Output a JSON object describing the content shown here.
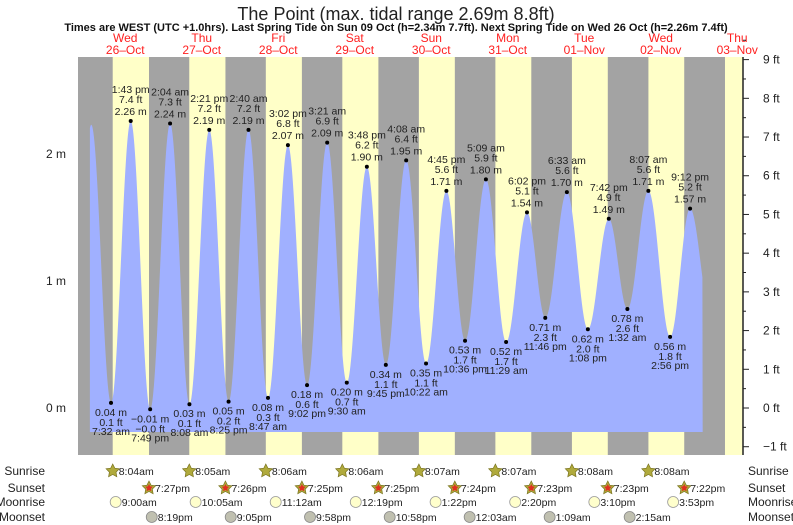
{
  "title": "The Point (max. tidal range 2.69m 8.8ft)",
  "subtitle": "Times are WEST (UTC +1.0hrs). Last Spring Tide on Sun 09 Oct (h=2.34m 7.7ft). Next Spring Tide on Wed 26 Oct (h=2.26m 7.4ft)",
  "colors": {
    "night": "#a3a3a3",
    "day": "#ffffc8",
    "tide": "#a0b0ff",
    "day_label": "#ff2020",
    "sunrise_star": "#b0aa3c",
    "sunset_star": "#e03020",
    "moonrise": "#ffffcc",
    "moonset": "#c0c0b0"
  },
  "chart_data": {
    "type": "area",
    "title": "The Point (max. tidal range 2.69m 8.8ft)",
    "left_axis": {
      "unit": "m",
      "ticks": [
        "2 m",
        "1 m",
        "0 m"
      ],
      "values": [
        2,
        1,
        0
      ]
    },
    "right_axis": {
      "unit": "ft",
      "ticks": [
        "9 ft",
        "8 ft",
        "7 ft",
        "6 ft",
        "5 ft",
        "4 ft",
        "3 ft",
        "2 ft",
        "1 ft",
        "0 ft",
        "−1 ft"
      ],
      "values": [
        9,
        8,
        7,
        6,
        5,
        4,
        3,
        2,
        1,
        0,
        -1
      ]
    },
    "days": [
      {
        "dow": "Wed",
        "date": "26-Oct"
      },
      {
        "dow": "Thu",
        "date": "27-Oct"
      },
      {
        "dow": "Fri",
        "date": "28-Oct"
      },
      {
        "dow": "Sat",
        "date": "29-Oct"
      },
      {
        "dow": "Sun",
        "date": "30-Oct"
      },
      {
        "dow": "Mon",
        "date": "31-Oct"
      },
      {
        "dow": "Tue",
        "date": "01-Nov"
      },
      {
        "dow": "Wed",
        "date": "02-Nov"
      },
      {
        "dow": "Thu",
        "date": "03-Nov"
      }
    ],
    "extremes": [
      {
        "type": "low",
        "day": "26-Oct",
        "time": "7:32 am",
        "m": "0.04 m",
        "ft": "0.1 ft",
        "h": 0.04
      },
      {
        "type": "high",
        "day": "26-Oct",
        "time": "1:43 pm",
        "m": "2.26 m",
        "ft": "7.4 ft",
        "h": 2.26
      },
      {
        "type": "low",
        "day": "26-Oct",
        "time": "7:49 pm",
        "m": "−0.01 m",
        "ft": "−0.0 ft",
        "h": -0.01
      },
      {
        "type": "high",
        "day": "27-Oct",
        "time": "2:04 am",
        "m": "2.24 m",
        "ft": "7.3 ft",
        "h": 2.24
      },
      {
        "type": "low",
        "day": "27-Oct",
        "time": "8:08 am",
        "m": "0.03 m",
        "ft": "0.1 ft",
        "h": 0.03
      },
      {
        "type": "high",
        "day": "27-Oct",
        "time": "2:21 pm",
        "m": "2.19 m",
        "ft": "7.2 ft",
        "h": 2.19
      },
      {
        "type": "low",
        "day": "27-Oct",
        "time": "8:25 pm",
        "m": "0.05 m",
        "ft": "0.2 ft",
        "h": 0.05
      },
      {
        "type": "high",
        "day": "28-Oct",
        "time": "2:40 am",
        "m": "2.19 m",
        "ft": "7.2 ft",
        "h": 2.19
      },
      {
        "type": "low",
        "day": "28-Oct",
        "time": "8:47 am",
        "m": "0.08 m",
        "ft": "0.3 ft",
        "h": 0.08
      },
      {
        "type": "high",
        "day": "28-Oct",
        "time": "3:02 pm",
        "m": "2.07 m",
        "ft": "6.8 ft",
        "h": 2.07
      },
      {
        "type": "low",
        "day": "28-Oct",
        "time": "9:02 pm",
        "m": "0.18 m",
        "ft": "0.6 ft",
        "h": 0.18
      },
      {
        "type": "high",
        "day": "29-Oct",
        "time": "3:21 am",
        "m": "2.09 m",
        "ft": "6.9 ft",
        "h": 2.09
      },
      {
        "type": "low",
        "day": "29-Oct",
        "time": "9:30 am",
        "m": "0.20 m",
        "ft": "0.7 ft",
        "h": 0.2
      },
      {
        "type": "high",
        "day": "29-Oct",
        "time": "3:48 pm",
        "m": "1.90 m",
        "ft": "6.2 ft",
        "h": 1.9
      },
      {
        "type": "low",
        "day": "29-Oct",
        "time": "9:45 pm",
        "m": "0.34 m",
        "ft": "1.1 ft",
        "h": 0.34
      },
      {
        "type": "high",
        "day": "30-Oct",
        "time": "4:08 am",
        "m": "1.95 m",
        "ft": "6.4 ft",
        "h": 1.95
      },
      {
        "type": "low",
        "day": "30-Oct",
        "time": "10:22 am",
        "m": "0.35 m",
        "ft": "1.1 ft",
        "h": 0.35
      },
      {
        "type": "high",
        "day": "30-Oct",
        "time": "4:45 pm",
        "m": "1.71 m",
        "ft": "5.6 ft",
        "h": 1.71
      },
      {
        "type": "low",
        "day": "30-Oct",
        "time": "10:36 pm",
        "m": "0.53 m",
        "ft": "1.7 ft",
        "h": 0.53
      },
      {
        "type": "high",
        "day": "31-Oct",
        "time": "5:09 am",
        "m": "1.80 m",
        "ft": "5.9 ft",
        "h": 1.8
      },
      {
        "type": "low",
        "day": "31-Oct",
        "time": "11:29 am",
        "m": "0.52 m",
        "ft": "1.7 ft",
        "h": 0.52
      },
      {
        "type": "high",
        "day": "31-Oct",
        "time": "6:02 pm",
        "m": "1.54 m",
        "ft": "5.1 ft",
        "h": 1.54
      },
      {
        "type": "low",
        "day": "31-Oct",
        "time": "11:46 pm",
        "m": "0.71 m",
        "ft": "2.3 ft",
        "h": 0.71
      },
      {
        "type": "high",
        "day": "01-Nov",
        "time": "6:33 am",
        "m": "1.70 m",
        "ft": "5.6 ft",
        "h": 1.7
      },
      {
        "type": "low",
        "day": "01-Nov",
        "time": "1:08 pm",
        "m": "0.62 m",
        "ft": "2.0 ft",
        "h": 0.62
      },
      {
        "type": "high",
        "day": "01-Nov",
        "time": "7:42 pm",
        "m": "1.49 m",
        "ft": "4.9 ft",
        "h": 1.49
      },
      {
        "type": "low",
        "day": "02-Nov",
        "time": "1:32 am",
        "m": "0.78 m",
        "ft": "2.6 ft",
        "h": 0.78
      },
      {
        "type": "high",
        "day": "02-Nov",
        "time": "8:07 am",
        "m": "1.71 m",
        "ft": "5.6 ft",
        "h": 1.71
      },
      {
        "type": "low",
        "day": "02-Nov",
        "time": "2:56 pm",
        "m": "0.56 m",
        "ft": "1.8 ft",
        "h": 0.56
      },
      {
        "type": "high",
        "day": "02-Nov",
        "time": "9:12 pm",
        "m": "1.57 m",
        "ft": "5.2 ft",
        "h": 1.57
      }
    ]
  },
  "astro": {
    "labels": {
      "sunrise": "Sunrise",
      "sunset": "Sunset",
      "moonrise": "Moonrise",
      "moonset": "Moonset"
    },
    "sunrise": [
      {
        "day": "26-Oct",
        "time": "8:04am"
      },
      {
        "day": "27-Oct",
        "time": "8:05am"
      },
      {
        "day": "28-Oct",
        "time": "8:06am"
      },
      {
        "day": "29-Oct",
        "time": "8:06am"
      },
      {
        "day": "30-Oct",
        "time": "8:07am"
      },
      {
        "day": "31-Oct",
        "time": "8:07am"
      },
      {
        "day": "01-Nov",
        "time": "8:08am"
      },
      {
        "day": "02-Nov",
        "time": "8:08am"
      }
    ],
    "sunset": [
      {
        "day": "26-Oct",
        "time": "7:27pm"
      },
      {
        "day": "27-Oct",
        "time": "7:26pm"
      },
      {
        "day": "28-Oct",
        "time": "7:25pm"
      },
      {
        "day": "29-Oct",
        "time": "7:25pm"
      },
      {
        "day": "30-Oct",
        "time": "7:24pm"
      },
      {
        "day": "31-Oct",
        "time": "7:23pm"
      },
      {
        "day": "01-Nov",
        "time": "7:23pm"
      },
      {
        "day": "02-Nov",
        "time": "7:22pm"
      }
    ],
    "moonrise": [
      {
        "day": "26-Oct",
        "time": "9:00am"
      },
      {
        "day": "27-Oct",
        "time": "10:05am"
      },
      {
        "day": "28-Oct",
        "time": "11:12am"
      },
      {
        "day": "29-Oct",
        "time": "12:19pm"
      },
      {
        "day": "30-Oct",
        "time": "1:22pm"
      },
      {
        "day": "31-Oct",
        "time": "2:20pm"
      },
      {
        "day": "01-Nov",
        "time": "3:10pm"
      },
      {
        "day": "02-Nov",
        "time": "3:53pm"
      }
    ],
    "moonset": [
      {
        "day": "26-Oct",
        "time": "8:19pm"
      },
      {
        "day": "27-Oct",
        "time": "9:05pm"
      },
      {
        "day": "28-Oct",
        "time": "9:58pm"
      },
      {
        "day": "29-Oct",
        "time": "10:58pm"
      },
      {
        "day": "31-Oct",
        "time": "12:03am"
      },
      {
        "day": "01-Nov",
        "time": "1:09am"
      },
      {
        "day": "02-Nov",
        "time": "2:15am"
      }
    ]
  }
}
